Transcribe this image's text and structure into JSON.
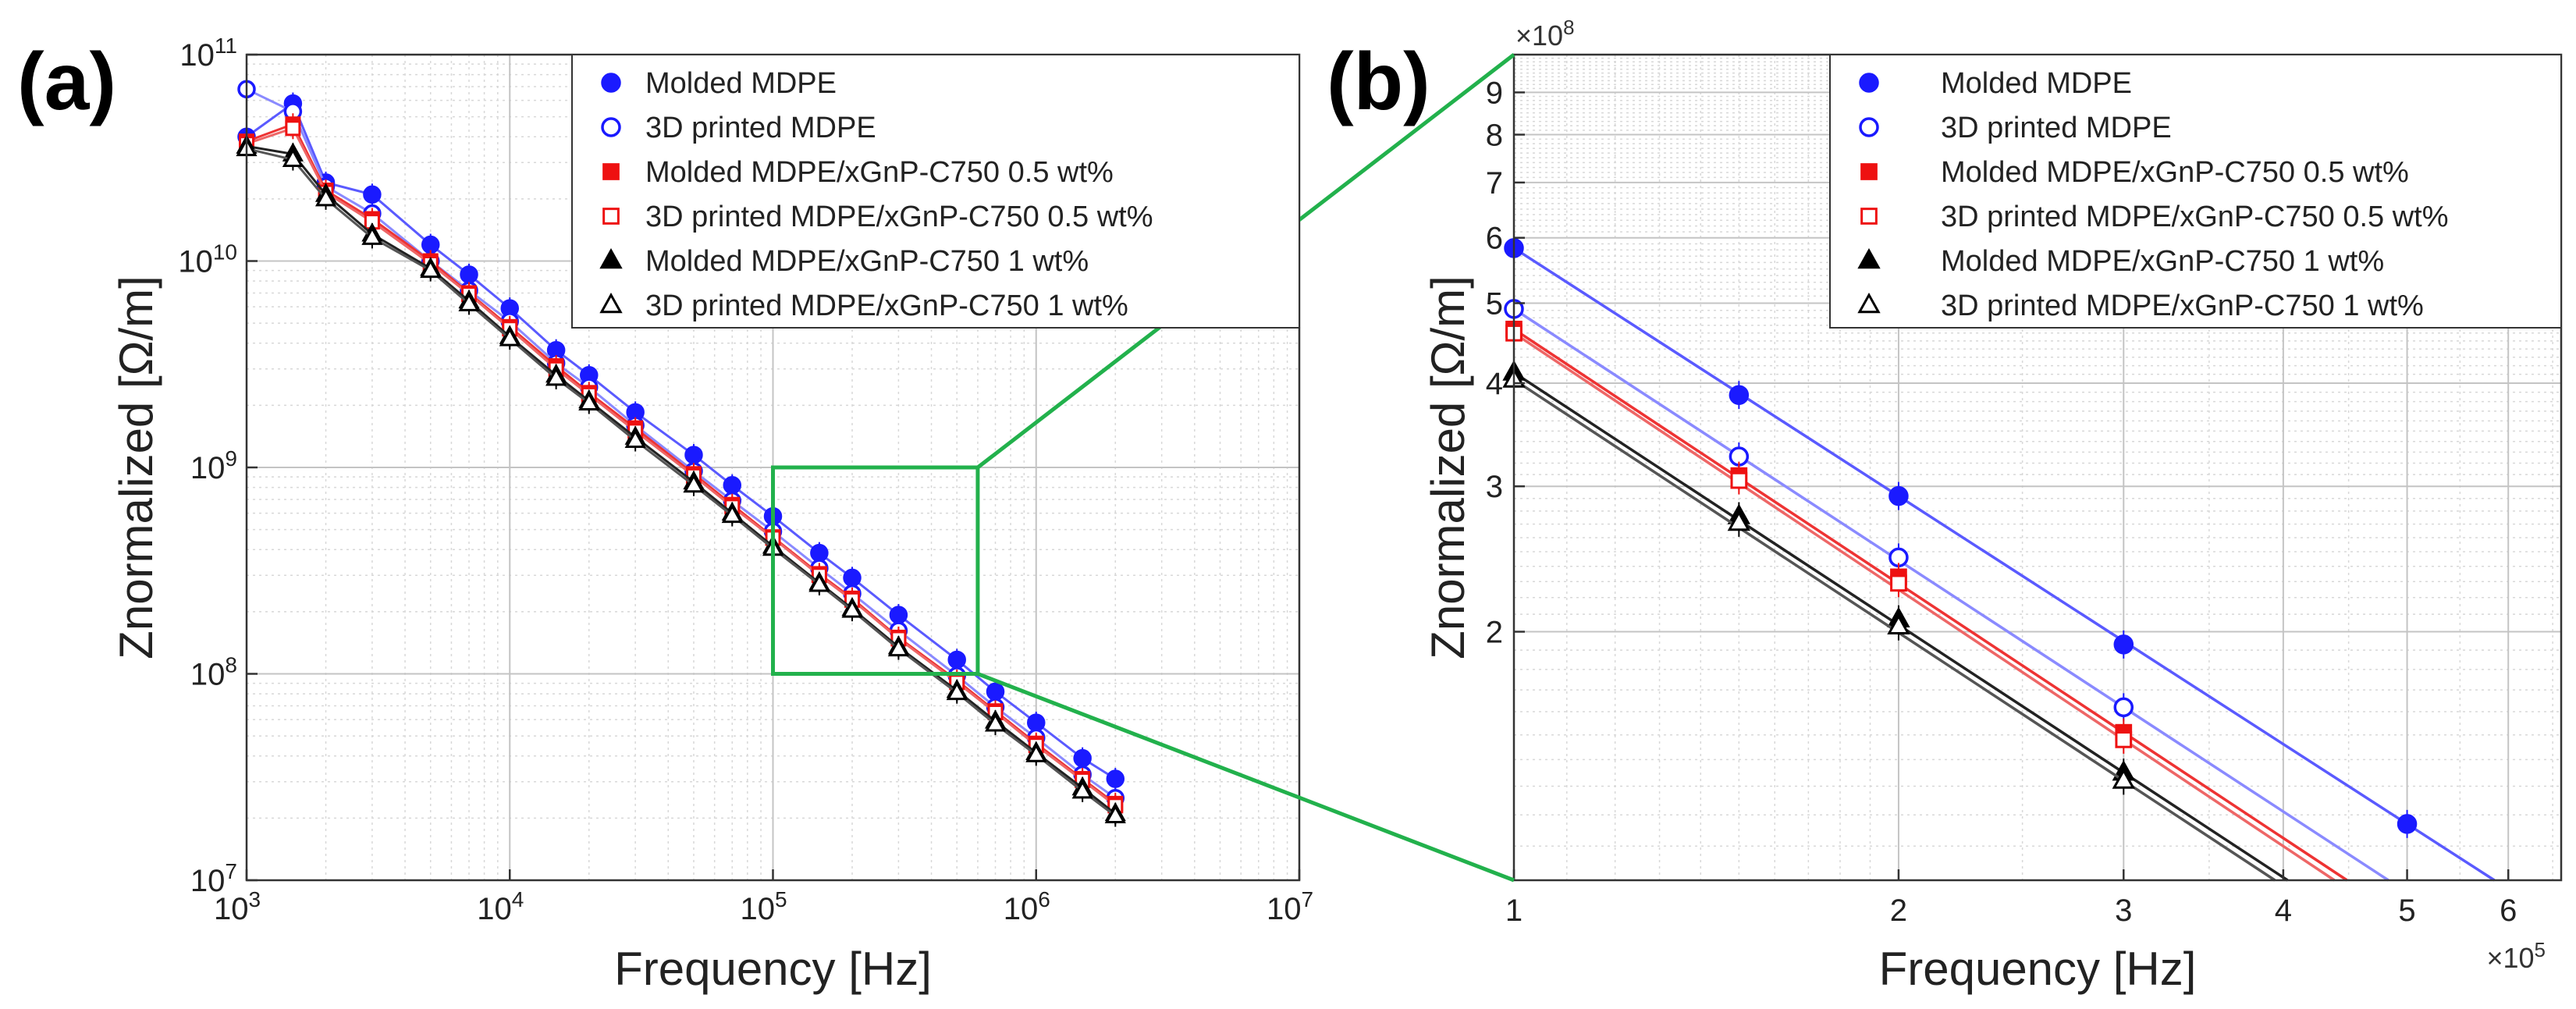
{
  "figure": {
    "panel_a_tag": "(a)",
    "panel_b_tag": "(b)",
    "zoom_color": "#22b14c"
  },
  "series_styles": [
    {
      "name": "Molded MDPE",
      "color": "#1a1aff",
      "line": "#5a5aff",
      "marker": "circle",
      "filled": true
    },
    {
      "name": "3D printed MDPE",
      "color": "#1a1aff",
      "line": "#8a8aff",
      "marker": "circle",
      "filled": false
    },
    {
      "name": "Molded MDPE/xGnP-C750 0.5 wt%",
      "color": "#ee1111",
      "line": "#ee3333",
      "marker": "square",
      "filled": true
    },
    {
      "name": "3D printed MDPE/xGnP-C750 0.5 wt%",
      "color": "#ee1111",
      "line": "#ee6666",
      "marker": "square",
      "filled": false
    },
    {
      "name": "Molded MDPE/xGnP-C750 1 wt%",
      "color": "#000000",
      "line": "#222222",
      "marker": "triangle",
      "filled": true
    },
    {
      "name": "3D printed MDPE/xGnP-C750 1 wt%",
      "color": "#000000",
      "line": "#555555",
      "marker": "triangle",
      "filled": false
    }
  ],
  "chart_data": [
    {
      "id": "a",
      "type": "line",
      "xscale": "log",
      "yscale": "log",
      "xlabel": "Frequency [Hz]",
      "ylabel": "Znormalized [Ω/m]",
      "xlim": [
        1000,
        10000000
      ],
      "ylim": [
        10000000,
        100000000000
      ],
      "grid": true,
      "legend_position": "top-right",
      "x_ticks": [
        {
          "base": "10",
          "exp": "3"
        },
        {
          "base": "10",
          "exp": "4"
        },
        {
          "base": "10",
          "exp": "5"
        },
        {
          "base": "10",
          "exp": "6"
        },
        {
          "base": "10",
          "exp": "7"
        }
      ],
      "y_ticks": [
        {
          "base": "10",
          "exp": "7"
        },
        {
          "base": "10",
          "exp": "8"
        },
        {
          "base": "10",
          "exp": "9"
        },
        {
          "base": "10",
          "exp": "10"
        },
        {
          "base": "10",
          "exp": "11"
        }
      ],
      "x": [
        1000,
        1500,
        2000,
        3000,
        5000,
        7000,
        10000,
        15000,
        20000,
        30000,
        50000,
        70000,
        100000,
        150000,
        200000,
        300000,
        500000,
        700000,
        1000000,
        1500000,
        2000000
      ],
      "series": [
        {
          "name": "Molded MDPE",
          "values": [
            40000000000,
            58000000000,
            24000000000,
            21000000000,
            12000000000,
            8600000000,
            5900000000,
            3700000000,
            2800000000,
            1850000000,
            1150000000,
            820000000,
            580000000,
            385000000,
            292000000,
            193000000,
            117000000,
            82000000,
            58000000,
            39000000,
            31000000
          ]
        },
        {
          "name": "3D printed MDPE",
          "values": [
            68000000000,
            53000000000,
            23000000000,
            17000000000,
            10000000000,
            7200000000,
            5100000000,
            3200000000,
            2450000000,
            1600000000,
            960000000,
            690000000,
            490000000,
            325000000,
            245000000,
            162000000,
            98000000,
            69000000,
            49000000,
            32500000,
            25000000
          ]
        },
        {
          "name": "Molded MDPE/xGnP-C750 0.5 wt%",
          "values": [
            38000000000,
            46000000000,
            22000000000,
            16000000000,
            10000000000,
            7000000000,
            4800000000,
            3100000000,
            2300000000,
            1550000000,
            930000000,
            660000000,
            460000000,
            305000000,
            232000000,
            150000000,
            93000000,
            66000000,
            46000000,
            31000000,
            23500000
          ]
        },
        {
          "name": "3D printed MDPE/xGnP-C750 0.5 wt%",
          "values": [
            37000000000,
            44000000000,
            21500000000,
            15500000000,
            9700000000,
            6900000000,
            4700000000,
            3000000000,
            2250000000,
            1500000000,
            910000000,
            645000000,
            455000000,
            300000000,
            228000000,
            148000000,
            91000000,
            65000000,
            45000000,
            30500000,
            23000000
          ]
        },
        {
          "name": "Molded MDPE/xGnP-C750 1 wt%",
          "values": [
            36000000000,
            33000000000,
            21000000000,
            13500000000,
            9200000000,
            6400000000,
            4300000000,
            2800000000,
            2100000000,
            1400000000,
            850000000,
            600000000,
            415000000,
            276000000,
            207000000,
            135000000,
            83000000,
            59000000,
            41500000,
            28000000,
            21000000
          ]
        },
        {
          "name": "3D printed MDPE/xGnP-C750 1 wt%",
          "values": [
            35000000000,
            31000000000,
            20000000000,
            13000000000,
            9000000000,
            6200000000,
            4200000000,
            2700000000,
            2050000000,
            1350000000,
            820000000,
            585000000,
            405000000,
            271000000,
            203000000,
            132000000,
            81000000,
            57000000,
            40500000,
            27000000,
            20500000
          ]
        }
      ]
    },
    {
      "id": "b",
      "type": "line",
      "xscale": "log",
      "yscale": "log",
      "xlabel": "Frequency [Hz]",
      "ylabel": "Znormalized [Ω/m]",
      "xlim": [
        100000,
        660000
      ],
      "ylim": [
        100000000,
        1000000000
      ],
      "grid": true,
      "legend_position": "top-right",
      "x_multiplier_base": "×10",
      "x_multiplier_exp": "5",
      "y_multiplier_base": "×10",
      "y_multiplier_exp": "8",
      "x_tick_values": [
        100000,
        200000,
        300000,
        400000,
        500000,
        600000
      ],
      "x_tick_labels": [
        "1",
        "2",
        "3",
        "4",
        "5",
        "6"
      ],
      "y_tick_values": [
        200000000,
        300000000,
        400000000,
        500000000,
        600000000,
        700000000,
        800000000,
        900000000
      ],
      "y_tick_labels": [
        "2",
        "3",
        "4",
        "5",
        "6",
        "7",
        "8",
        "9"
      ],
      "x": [
        100000,
        150000,
        200000,
        300000,
        500000
      ],
      "series": [
        {
          "name": "Molded MDPE",
          "values": [
            583000000,
            387000000,
            292000000,
            193000000,
            117000000
          ]
        },
        {
          "name": "3D printed MDPE",
          "values": [
            492000000,
            326000000,
            246000000,
            162000000,
            null
          ]
        },
        {
          "name": "Molded MDPE/xGnP-C750 0.5 wt%",
          "values": [
            465000000,
            309000000,
            233000000,
            151000000,
            null
          ]
        },
        {
          "name": "3D printed MDPE/xGnP-C750 0.5 wt%",
          "values": [
            460000000,
            305000000,
            229000000,
            148000000,
            null
          ]
        },
        {
          "name": "Molded MDPE/xGnP-C750 1 wt%",
          "values": [
            412000000,
            276000000,
            207000000,
            135000000,
            null
          ]
        },
        {
          "name": "3D printed MDPE/xGnP-C750 1 wt%",
          "values": [
            404000000,
            271000000,
            203000000,
            132000000,
            null
          ]
        }
      ]
    }
  ]
}
